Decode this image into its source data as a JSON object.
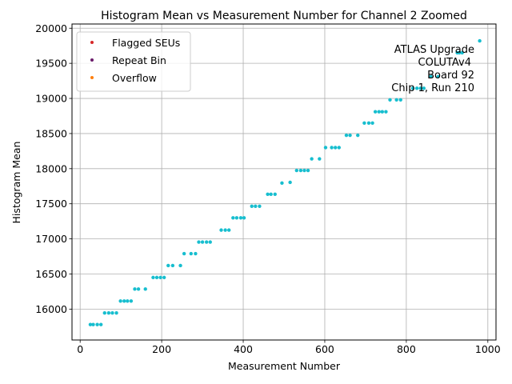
{
  "chart_data": {
    "type": "scatter",
    "title": "Histogram Mean vs Measurement Number for Channel 2 Zoomed",
    "xlabel": "Measurement Number",
    "ylabel": "Histogram Mean",
    "xlim": [
      -20,
      1020
    ],
    "ylim": [
      15560,
      20060
    ],
    "xticks": [
      0,
      200,
      400,
      600,
      800,
      1000
    ],
    "yticks": [
      16000,
      16500,
      17000,
      17500,
      18000,
      18500,
      19000,
      19500,
      20000
    ],
    "grid": true,
    "legend": {
      "placement": "top-left",
      "entries": [
        {
          "label": "Flagged SEUs",
          "color": "#d62728"
        },
        {
          "label": "Repeat Bin",
          "color": "#6a1b6a"
        },
        {
          "label": "Overflow",
          "color": "#ff7f0e"
        }
      ]
    },
    "annotation": [
      "ATLAS Upgrade",
      "COLUTAv4",
      "Board 92",
      "Chip 1, Run 210"
    ],
    "series": [
      {
        "name": "Measurements",
        "color": "#17becf",
        "points": [
          [
            25,
            15780
          ],
          [
            32,
            15780
          ],
          [
            42,
            15780
          ],
          [
            51,
            15780
          ],
          [
            60,
            15945
          ],
          [
            70,
            15945
          ],
          [
            79,
            15945
          ],
          [
            89,
            15945
          ],
          [
            99,
            16115
          ],
          [
            108,
            16115
          ],
          [
            116,
            16115
          ],
          [
            125,
            16115
          ],
          [
            134,
            16285
          ],
          [
            143,
            16285
          ],
          [
            160,
            16285
          ],
          [
            179,
            16450
          ],
          [
            188,
            16450
          ],
          [
            197,
            16450
          ],
          [
            206,
            16450
          ],
          [
            216,
            16620
          ],
          [
            227,
            16620
          ],
          [
            246,
            16620
          ],
          [
            255,
            16790
          ],
          [
            272,
            16790
          ],
          [
            283,
            16790
          ],
          [
            291,
            16955
          ],
          [
            300,
            16955
          ],
          [
            310,
            16955
          ],
          [
            319,
            16955
          ],
          [
            346,
            17125
          ],
          [
            356,
            17125
          ],
          [
            365,
            17125
          ],
          [
            375,
            17300
          ],
          [
            384,
            17300
          ],
          [
            394,
            17300
          ],
          [
            402,
            17300
          ],
          [
            421,
            17465
          ],
          [
            430,
            17465
          ],
          [
            440,
            17465
          ],
          [
            460,
            17635
          ],
          [
            468,
            17635
          ],
          [
            478,
            17635
          ],
          [
            495,
            17795
          ],
          [
            515,
            17805
          ],
          [
            531,
            17975
          ],
          [
            541,
            17975
          ],
          [
            550,
            17975
          ],
          [
            559,
            17975
          ],
          [
            568,
            18140
          ],
          [
            587,
            18140
          ],
          [
            602,
            18300
          ],
          [
            617,
            18300
          ],
          [
            626,
            18300
          ],
          [
            635,
            18300
          ],
          [
            653,
            18475
          ],
          [
            662,
            18475
          ],
          [
            681,
            18475
          ],
          [
            697,
            18650
          ],
          [
            708,
            18650
          ],
          [
            717,
            18650
          ],
          [
            724,
            18810
          ],
          [
            733,
            18810
          ],
          [
            741,
            18810
          ],
          [
            750,
            18810
          ],
          [
            760,
            18980
          ],
          [
            776,
            18980
          ],
          [
            786,
            18980
          ],
          [
            816,
            19145
          ],
          [
            826,
            19145
          ],
          [
            835,
            19145
          ],
          [
            843,
            19145
          ],
          [
            860,
            19310
          ],
          [
            878,
            19310
          ],
          [
            925,
            19650
          ],
          [
            930,
            19650
          ],
          [
            937,
            19650
          ],
          [
            980,
            19820
          ]
        ]
      }
    ]
  }
}
